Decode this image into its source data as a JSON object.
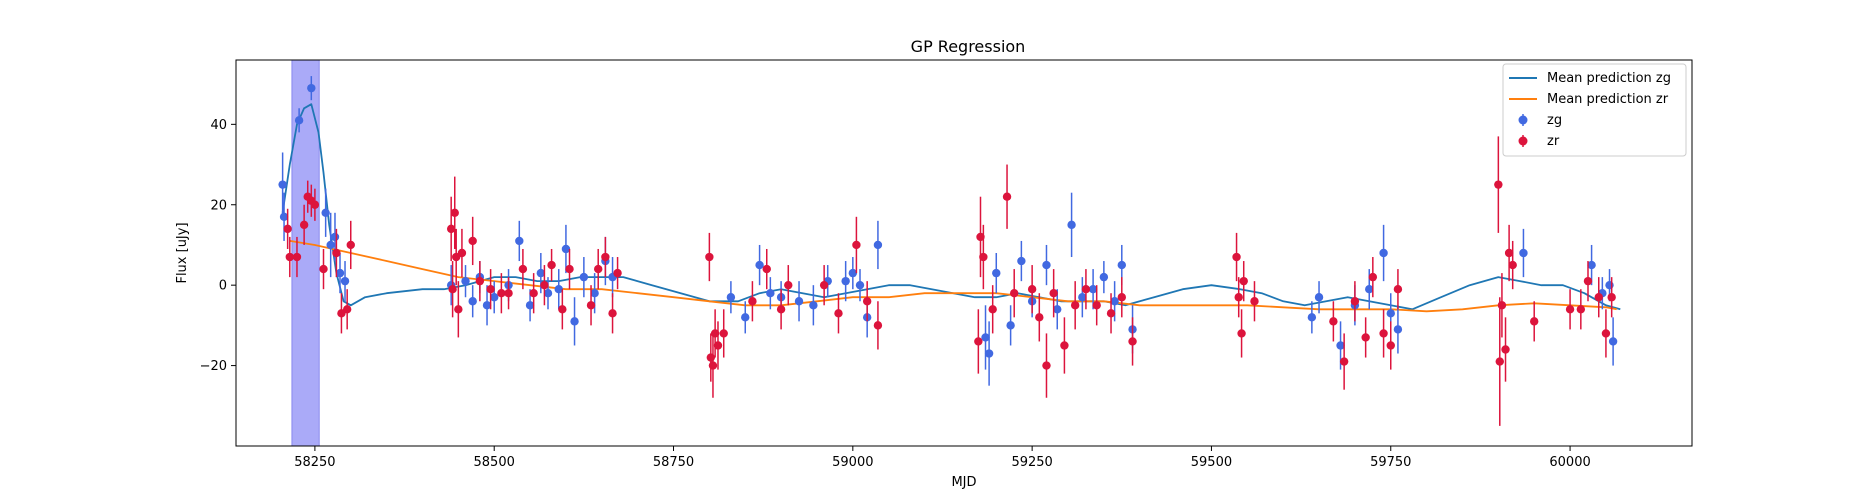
{
  "chart_data": {
    "type": "scatter",
    "title": "GP Regression",
    "xlabel": "MJD",
    "ylabel": "Flux [uJy]",
    "xlim": [
      58140,
      60170
    ],
    "ylim": [
      -40,
      56
    ],
    "xticks": [
      58250,
      58500,
      58750,
      59000,
      59250,
      59500,
      59750,
      60000
    ],
    "xtick_labels": [
      "58250",
      "58500",
      "58750",
      "59000",
      "59250",
      "59500",
      "59750",
      "60000"
    ],
    "yticks": [
      -20,
      0,
      20,
      40
    ],
    "ytick_labels": [
      "−20",
      "0",
      "20",
      "40"
    ],
    "legend_position": "top-right",
    "highlight_span": {
      "x_start": 58218,
      "x_end": 58256,
      "color": "#aaaaf8"
    },
    "lines": [
      {
        "name": "Mean prediction zg",
        "color": "#1f77b4",
        "x": [
          58205,
          58215,
          58225,
          58235,
          58245,
          58255,
          58262,
          58270,
          58280,
          58290,
          58300,
          58320,
          58350,
          58400,
          58430,
          58460,
          58500,
          58530,
          58560,
          58590,
          58620,
          58650,
          58680,
          58720,
          58760,
          58800,
          58840,
          58870,
          58900,
          58930,
          58960,
          58990,
          59020,
          59050,
          59080,
          59110,
          59140,
          59170,
          59200,
          59230,
          59260,
          59290,
          59320,
          59350,
          59380,
          59420,
          59460,
          59500,
          59540,
          59570,
          59600,
          59630,
          59660,
          59690,
          59720,
          59750,
          59780,
          59820,
          59860,
          59900,
          59930,
          59960,
          59990,
          60020,
          60050,
          60070
        ],
        "y": [
          18,
          30,
          40,
          44,
          45,
          38,
          28,
          15,
          3,
          -4,
          -5,
          -3,
          -2,
          -1,
          -1,
          0,
          2,
          2,
          1,
          1,
          2,
          2,
          2,
          0,
          -2,
          -4,
          -4,
          -2,
          -1,
          -2,
          -3,
          -2,
          -1,
          0,
          0,
          -1,
          -2,
          -3,
          -3,
          -2,
          -3,
          -4,
          -4,
          -4,
          -5,
          -3,
          -1,
          0,
          -1,
          -2,
          -4,
          -5,
          -4,
          -3,
          -4,
          -5,
          -6,
          -3,
          0,
          2,
          1,
          0,
          0,
          -2,
          -5,
          -6
        ]
      },
      {
        "name": "Mean prediction zr",
        "color": "#ff7f0e",
        "x": [
          58215,
          58250,
          58300,
          58350,
          58400,
          58450,
          58500,
          58550,
          58600,
          58650,
          58700,
          58750,
          58800,
          58850,
          58900,
          58950,
          59000,
          59050,
          59100,
          59150,
          59200,
          59250,
          59300,
          59350,
          59400,
          59450,
          59500,
          59550,
          59600,
          59650,
          59700,
          59750,
          59800,
          59850,
          59900,
          59950,
          60000,
          60050,
          60065
        ],
        "y": [
          11,
          10,
          8,
          6,
          4,
          2,
          1,
          0,
          -1,
          -1,
          -2,
          -3,
          -4,
          -5,
          -5,
          -4,
          -3,
          -3,
          -2,
          -2,
          -2,
          -3,
          -4,
          -4,
          -5,
          -5,
          -5,
          -5,
          -5.5,
          -6,
          -6,
          -6,
          -6.5,
          -6,
          -5,
          -4.5,
          -5,
          -5.5,
          -6
        ]
      }
    ],
    "series": [
      {
        "name": "zg",
        "color": "#4169e1",
        "points": [
          [
            58205,
            25,
            8
          ],
          [
            58207,
            17,
            6
          ],
          [
            58228,
            41,
            3
          ],
          [
            58245,
            49,
            3
          ],
          [
            58265,
            18,
            6
          ],
          [
            58272,
            10,
            8
          ],
          [
            58278,
            12,
            6
          ],
          [
            58285,
            3,
            5
          ],
          [
            58292,
            1,
            5
          ],
          [
            58440,
            0,
            5
          ],
          [
            58460,
            1,
            4
          ],
          [
            58470,
            -4,
            4
          ],
          [
            58480,
            2,
            4
          ],
          [
            58490,
            -5,
            5
          ],
          [
            58500,
            -3,
            4
          ],
          [
            58520,
            0,
            4
          ],
          [
            58535,
            11,
            5
          ],
          [
            58550,
            -5,
            4
          ],
          [
            58565,
            3,
            5
          ],
          [
            58575,
            -2,
            4
          ],
          [
            58590,
            -1,
            5
          ],
          [
            58600,
            9,
            6
          ],
          [
            58612,
            -9,
            6
          ],
          [
            58625,
            2,
            5
          ],
          [
            58640,
            -2,
            5
          ],
          [
            58655,
            6,
            6
          ],
          [
            58665,
            2,
            5
          ],
          [
            58830,
            -3,
            4
          ],
          [
            58850,
            -8,
            4
          ],
          [
            58870,
            5,
            5
          ],
          [
            58885,
            -2,
            4
          ],
          [
            58900,
            -3,
            4
          ],
          [
            58925,
            -4,
            5
          ],
          [
            58945,
            -5,
            5
          ],
          [
            58965,
            1,
            4
          ],
          [
            58990,
            1,
            5
          ],
          [
            59000,
            3,
            4
          ],
          [
            59010,
            0,
            4
          ],
          [
            59020,
            -8,
            5
          ],
          [
            59035,
            10,
            6
          ],
          [
            59185,
            -13,
            8
          ],
          [
            59190,
            -17,
            8
          ],
          [
            59200,
            3,
            5
          ],
          [
            59220,
            -10,
            5
          ],
          [
            59235,
            6,
            5
          ],
          [
            59250,
            -4,
            4
          ],
          [
            59270,
            5,
            5
          ],
          [
            59285,
            -6,
            5
          ],
          [
            59305,
            15,
            8
          ],
          [
            59320,
            -3,
            5
          ],
          [
            59335,
            -1,
            5
          ],
          [
            59350,
            2,
            4
          ],
          [
            59365,
            -4,
            5
          ],
          [
            59375,
            5,
            5
          ],
          [
            59390,
            -11,
            6
          ],
          [
            59640,
            -8,
            4
          ],
          [
            59650,
            -3,
            4
          ],
          [
            59680,
            -15,
            6
          ],
          [
            59700,
            -5,
            5
          ],
          [
            59720,
            -1,
            5
          ],
          [
            59740,
            8,
            7
          ],
          [
            59750,
            -7,
            5
          ],
          [
            59760,
            -11,
            6
          ],
          [
            59935,
            8,
            6
          ],
          [
            60030,
            5,
            5
          ],
          [
            60045,
            -2,
            4
          ],
          [
            60055,
            0,
            4
          ],
          [
            60060,
            -14,
            6
          ]
        ]
      },
      {
        "name": "zr",
        "color": "#dc143c",
        "points": [
          [
            58212,
            14,
            5
          ],
          [
            58215,
            7,
            5
          ],
          [
            58225,
            7,
            5
          ],
          [
            58235,
            15,
            5
          ],
          [
            58240,
            22,
            4
          ],
          [
            58245,
            21,
            4
          ],
          [
            58250,
            20,
            4
          ],
          [
            58262,
            4,
            5
          ],
          [
            58280,
            8,
            6
          ],
          [
            58287,
            -7,
            5
          ],
          [
            58295,
            -6,
            5
          ],
          [
            58300,
            10,
            6
          ],
          [
            58440,
            14,
            8
          ],
          [
            58442,
            -1,
            7
          ],
          [
            58445,
            18,
            9
          ],
          [
            58447,
            7,
            7
          ],
          [
            58450,
            -6,
            7
          ],
          [
            58455,
            8,
            6
          ],
          [
            58470,
            11,
            6
          ],
          [
            58480,
            1,
            5
          ],
          [
            58495,
            -1,
            5
          ],
          [
            58510,
            -2,
            5
          ],
          [
            58520,
            -2,
            4
          ],
          [
            58540,
            4,
            5
          ],
          [
            58555,
            -2,
            5
          ],
          [
            58570,
            0,
            5
          ],
          [
            58580,
            5,
            4
          ],
          [
            58595,
            -6,
            5
          ],
          [
            58605,
            4,
            5
          ],
          [
            58635,
            -5,
            5
          ],
          [
            58645,
            4,
            5
          ],
          [
            58655,
            7,
            5
          ],
          [
            58665,
            -7,
            5
          ],
          [
            58672,
            3,
            4
          ],
          [
            58800,
            7,
            6
          ],
          [
            58802,
            -18,
            6
          ],
          [
            58805,
            -20,
            8
          ],
          [
            58808,
            -12,
            6
          ],
          [
            58812,
            -15,
            6
          ],
          [
            58820,
            -12,
            6
          ],
          [
            58860,
            -4,
            5
          ],
          [
            58880,
            4,
            5
          ],
          [
            58900,
            -6,
            5
          ],
          [
            58910,
            0,
            5
          ],
          [
            58960,
            0,
            5
          ],
          [
            58980,
            -7,
            5
          ],
          [
            59005,
            10,
            7
          ],
          [
            59020,
            -4,
            5
          ],
          [
            59035,
            -10,
            6
          ],
          [
            59175,
            -14,
            8
          ],
          [
            59178,
            12,
            10
          ],
          [
            59182,
            7,
            8
          ],
          [
            59195,
            -6,
            6
          ],
          [
            59215,
            22,
            8
          ],
          [
            59225,
            -2,
            6
          ],
          [
            59250,
            -1,
            6
          ],
          [
            59260,
            -8,
            6
          ],
          [
            59270,
            -20,
            8
          ],
          [
            59280,
            -2,
            6
          ],
          [
            59295,
            -15,
            7
          ],
          [
            59310,
            -5,
            6
          ],
          [
            59325,
            -1,
            5
          ],
          [
            59340,
            -5,
            5
          ],
          [
            59360,
            -7,
            5
          ],
          [
            59375,
            -3,
            5
          ],
          [
            59390,
            -14,
            6
          ],
          [
            59535,
            7,
            6
          ],
          [
            59538,
            -3,
            5
          ],
          [
            59542,
            -12,
            6
          ],
          [
            59545,
            1,
            5
          ],
          [
            59560,
            -4,
            5
          ],
          [
            59670,
            -9,
            5
          ],
          [
            59685,
            -19,
            7
          ],
          [
            59700,
            -4,
            5
          ],
          [
            59715,
            -13,
            5
          ],
          [
            59725,
            2,
            5
          ],
          [
            59740,
            -12,
            6
          ],
          [
            59750,
            -15,
            6
          ],
          [
            59760,
            -1,
            5
          ],
          [
            59900,
            25,
            12
          ],
          [
            59902,
            -19,
            16
          ],
          [
            59905,
            -5,
            8
          ],
          [
            59910,
            -16,
            8
          ],
          [
            59915,
            8,
            7
          ],
          [
            59920,
            5,
            6
          ],
          [
            59950,
            -9,
            5
          ],
          [
            60000,
            -6,
            5
          ],
          [
            60015,
            -6,
            5
          ],
          [
            60025,
            1,
            5
          ],
          [
            60040,
            -3,
            5
          ],
          [
            60050,
            -12,
            6
          ],
          [
            60058,
            -3,
            5
          ]
        ]
      }
    ]
  }
}
